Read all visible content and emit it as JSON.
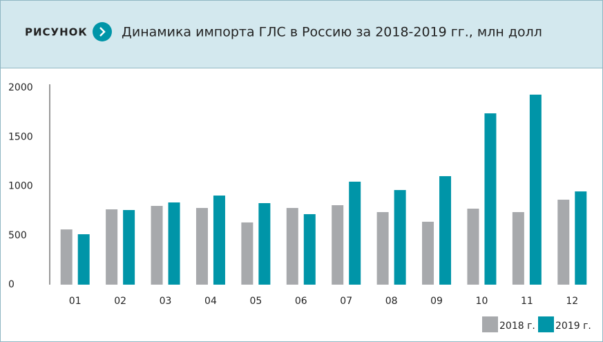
{
  "chart_data": {
    "type": "bar",
    "figure_label": "РИСУНОК",
    "title": "Динамика импорта ГЛС в Россию за 2018-2019 гг., млн долл",
    "categories": [
      "01",
      "02",
      "03",
      "04",
      "05",
      "06",
      "07",
      "08",
      "09",
      "10",
      "11",
      "12"
    ],
    "series": [
      {
        "name": "2018 г.",
        "color": "#a7a9ac",
        "values": [
          561,
          765,
          800,
          779,
          632,
          779,
          807,
          737,
          639,
          772,
          737,
          863
        ]
      },
      {
        "name": "2019 г.",
        "color": "#0095a8",
        "values": [
          512,
          758,
          835,
          905,
          828,
          716,
          1046,
          961,
          1102,
          1740,
          1930,
          947
        ]
      }
    ],
    "ylim": [
      0,
      2000
    ],
    "yticks": [
      0,
      500,
      1000,
      1500,
      2000
    ],
    "grid": false,
    "legend": "bottom-right"
  }
}
